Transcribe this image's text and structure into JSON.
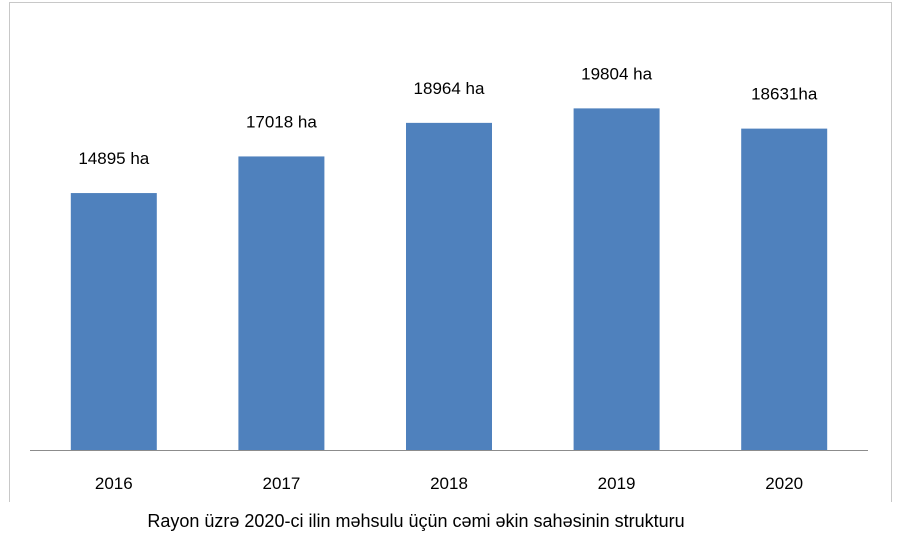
{
  "caption": "Rayon üzrə 2020-ci ilin məhsulu üçün cəmi əkin sahəsinin strukturu",
  "colors": {
    "bar": "#4f81bd",
    "axis": "#8c8c8c"
  },
  "chart_data": {
    "type": "bar",
    "title": "",
    "xlabel": "",
    "ylabel": "",
    "categories": [
      "2016",
      "2017",
      "2018",
      "2019",
      "2020"
    ],
    "values": [
      14895,
      17018,
      18964,
      19804,
      18631
    ],
    "data_labels": [
      "14895 ha",
      "17018 ha",
      "18964 ha",
      "19804 ha",
      "18631ha"
    ],
    "unit": "ha",
    "ylim": [
      0,
      20000
    ],
    "grid": false,
    "legend": "none"
  }
}
